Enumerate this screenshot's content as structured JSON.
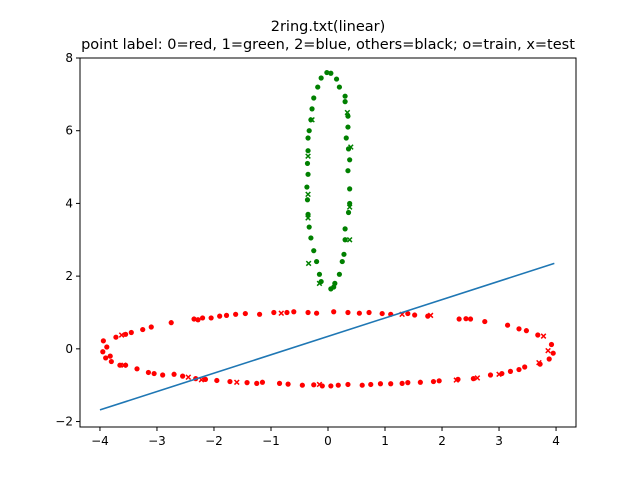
{
  "chart_data": {
    "type": "scatter",
    "title": "2ring.txt(linear)",
    "subtitle": "point label: 0=red, 1=green, 2=blue, others=black; o=train, x=test",
    "xlabel": "",
    "ylabel": "",
    "xlim": [
      -4.35,
      4.35
    ],
    "ylim": [
      -2.15,
      8.0
    ],
    "x_ticks": [
      -4,
      -3,
      -2,
      -1,
      0,
      1,
      2,
      3,
      4
    ],
    "y_ticks": [
      -2,
      0,
      2,
      4,
      6,
      8
    ],
    "grid": false,
    "colors": {
      "red": "#ff0000",
      "green": "#008000",
      "line": "#1f77b4"
    },
    "series": [
      {
        "label_code": 0,
        "color": "red",
        "role": "train",
        "marker": "o",
        "points": [
          [
            -3.94,
            0.22
          ],
          [
            -3.88,
            0.05
          ],
          [
            -3.95,
            -0.08
          ],
          [
            -3.82,
            -0.2
          ],
          [
            -3.72,
            0.32
          ],
          [
            -3.55,
            0.4
          ],
          [
            -3.45,
            0.45
          ],
          [
            -3.25,
            0.53
          ],
          [
            -3.1,
            0.6
          ],
          [
            -2.75,
            0.72
          ],
          [
            -2.35,
            0.82
          ],
          [
            -2.28,
            0.8
          ],
          [
            -2.2,
            0.85
          ],
          [
            -2.05,
            0.85
          ],
          [
            -1.9,
            0.9
          ],
          [
            -1.78,
            0.92
          ],
          [
            -1.62,
            0.95
          ],
          [
            -1.45,
            0.97
          ],
          [
            -1.2,
            0.95
          ],
          [
            -0.95,
            1.0
          ],
          [
            -0.72,
            1.0
          ],
          [
            -0.6,
            1.02
          ],
          [
            -0.35,
            1.0
          ],
          [
            -0.2,
            0.98
          ],
          [
            0.1,
            1.02
          ],
          [
            0.35,
            1.0
          ],
          [
            0.55,
            0.98
          ],
          [
            0.72,
            1.0
          ],
          [
            0.95,
            0.97
          ],
          [
            1.1,
            0.95
          ],
          [
            1.4,
            0.97
          ],
          [
            1.52,
            0.93
          ],
          [
            1.75,
            0.9
          ],
          [
            2.3,
            0.82
          ],
          [
            2.42,
            0.83
          ],
          [
            2.5,
            0.82
          ],
          [
            2.75,
            0.75
          ],
          [
            3.15,
            0.65
          ],
          [
            3.35,
            0.55
          ],
          [
            3.48,
            0.5
          ],
          [
            3.68,
            0.38
          ],
          [
            3.92,
            0.12
          ],
          [
            3.95,
            -0.12
          ],
          [
            3.88,
            -0.28
          ],
          [
            3.72,
            -0.42
          ],
          [
            3.45,
            -0.5
          ],
          [
            3.35,
            -0.57
          ],
          [
            3.2,
            -0.62
          ],
          [
            3.05,
            -0.68
          ],
          [
            2.85,
            -0.72
          ],
          [
            2.55,
            -0.82
          ],
          [
            2.28,
            -0.84
          ],
          [
            1.95,
            -0.88
          ],
          [
            1.85,
            -0.9
          ],
          [
            1.62,
            -0.92
          ],
          [
            1.4,
            -0.93
          ],
          [
            1.3,
            -0.95
          ],
          [
            1.1,
            -0.96
          ],
          [
            0.92,
            -0.96
          ],
          [
            0.75,
            -0.98
          ],
          [
            0.6,
            -1.0
          ],
          [
            0.35,
            -0.98
          ],
          [
            0.18,
            -1.0
          ],
          [
            0.05,
            -1.02
          ],
          [
            -0.1,
            -1.02
          ],
          [
            -0.25,
            -0.99
          ],
          [
            -0.45,
            -1.0
          ],
          [
            -0.7,
            -0.97
          ],
          [
            -0.85,
            -0.95
          ],
          [
            -1.15,
            -0.92
          ],
          [
            -1.25,
            -0.95
          ],
          [
            -1.42,
            -0.93
          ],
          [
            -1.72,
            -0.9
          ],
          [
            -1.95,
            -0.87
          ],
          [
            -2.15,
            -0.84
          ],
          [
            -2.32,
            -0.82
          ],
          [
            -2.55,
            -0.75
          ],
          [
            -2.7,
            -0.7
          ],
          [
            -2.9,
            -0.72
          ],
          [
            -3.05,
            -0.68
          ],
          [
            -3.15,
            -0.65
          ],
          [
            -3.35,
            -0.55
          ],
          [
            -3.55,
            -0.45
          ],
          [
            -3.65,
            -0.45
          ],
          [
            -3.8,
            -0.35
          ],
          [
            -3.9,
            -0.25
          ]
        ]
      },
      {
        "label_code": 0,
        "color": "red",
        "role": "test",
        "marker": "x",
        "points": [
          [
            -3.62,
            0.38
          ],
          [
            -3.58,
            -0.45
          ],
          [
            -2.45,
            -0.78
          ],
          [
            -2.22,
            -0.85
          ],
          [
            -1.6,
            -0.92
          ],
          [
            -0.82,
            0.98
          ],
          [
            -0.15,
            -0.98
          ],
          [
            1.3,
            0.95
          ],
          [
            1.8,
            0.92
          ],
          [
            2.25,
            -0.86
          ],
          [
            2.62,
            -0.8
          ],
          [
            3.0,
            -0.7
          ],
          [
            3.78,
            0.35
          ],
          [
            3.86,
            -0.05
          ],
          [
            3.7,
            -0.38
          ]
        ]
      },
      {
        "label_code": 1,
        "color": "green",
        "role": "train",
        "marker": "o",
        "points": [
          [
            -0.02,
            7.6
          ],
          [
            0.05,
            7.58
          ],
          [
            -0.12,
            7.45
          ],
          [
            0.15,
            7.42
          ],
          [
            -0.18,
            7.2
          ],
          [
            0.2,
            7.2
          ],
          [
            -0.25,
            6.9
          ],
          [
            0.3,
            6.95
          ],
          [
            -0.28,
            6.6
          ],
          [
            0.3,
            6.8
          ],
          [
            -0.3,
            6.3
          ],
          [
            0.35,
            6.4
          ],
          [
            -0.33,
            6.0
          ],
          [
            0.35,
            6.1
          ],
          [
            -0.35,
            5.8
          ],
          [
            0.32,
            5.8
          ],
          [
            -0.35,
            5.45
          ],
          [
            0.36,
            5.5
          ],
          [
            -0.36,
            5.1
          ],
          [
            0.38,
            5.2
          ],
          [
            -0.35,
            4.8
          ],
          [
            0.35,
            4.9
          ],
          [
            -0.37,
            4.45
          ],
          [
            0.38,
            4.4
          ],
          [
            -0.36,
            4.1
          ],
          [
            0.38,
            4.0
          ],
          [
            -0.35,
            3.7
          ],
          [
            0.36,
            3.75
          ],
          [
            -0.33,
            3.35
          ],
          [
            0.3,
            3.3
          ],
          [
            -0.3,
            3.05
          ],
          [
            0.3,
            3.0
          ],
          [
            -0.25,
            2.7
          ],
          [
            0.28,
            2.6
          ],
          [
            -0.2,
            2.4
          ],
          [
            0.25,
            2.4
          ],
          [
            -0.15,
            2.05
          ],
          [
            0.2,
            2.05
          ],
          [
            -0.12,
            1.85
          ],
          [
            0.12,
            1.8
          ],
          [
            0.05,
            1.65
          ],
          [
            0.1,
            1.7
          ]
        ]
      },
      {
        "label_code": 1,
        "color": "green",
        "role": "test",
        "marker": "x",
        "points": [
          [
            -0.28,
            6.3
          ],
          [
            0.34,
            6.5
          ],
          [
            -0.35,
            5.3
          ],
          [
            0.4,
            5.55
          ],
          [
            -0.35,
            4.25
          ],
          [
            0.38,
            3.9
          ],
          [
            -0.35,
            3.6
          ],
          [
            0.38,
            3.0
          ],
          [
            -0.34,
            2.35
          ],
          [
            -0.15,
            1.8
          ]
        ]
      }
    ],
    "line": {
      "color": "line",
      "points": [
        [
          -4.0,
          -1.68
        ],
        [
          3.97,
          2.35
        ]
      ]
    }
  }
}
